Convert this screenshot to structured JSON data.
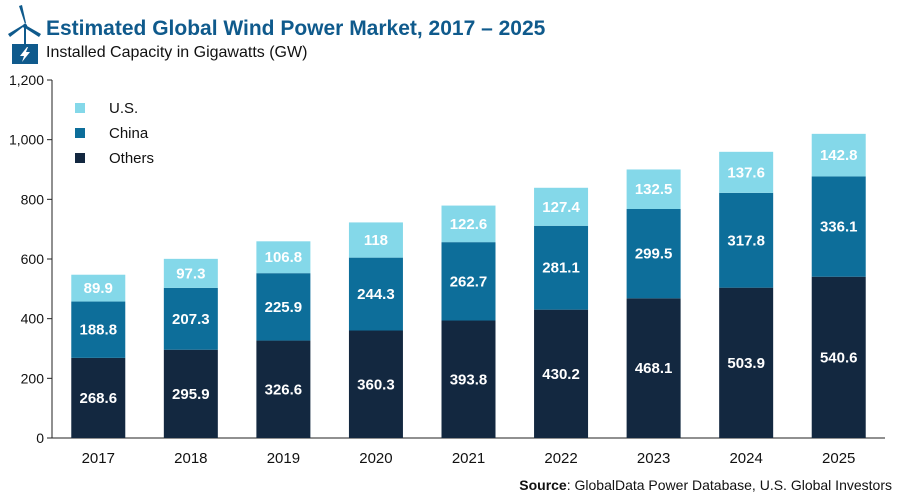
{
  "header": {
    "title": "Estimated Global Wind Power Market, 2017 – 2025",
    "subtitle": "Installed Capacity in Gigawatts (GW)"
  },
  "source": {
    "label": "Source",
    "text": ": GlobalData Power Database, U.S. Global Investors"
  },
  "colors": {
    "us": "#84d8e9",
    "china": "#0d6e9a",
    "others": "#132840",
    "title": "#0f5a8c",
    "label_light": "#ffffff",
    "label_dark": "#ffffff"
  },
  "chart_data": {
    "type": "bar",
    "stacked": true,
    "title": "Estimated Global Wind Power Market, 2017 – 2025",
    "subtitle": "Installed Capacity in Gigawatts (GW)",
    "xlabel": "",
    "ylabel": "",
    "ylim": [
      0,
      1200
    ],
    "yticks": [
      0,
      200,
      400,
      600,
      800,
      1000,
      1200
    ],
    "ytick_labels": [
      "0",
      "200",
      "400",
      "600",
      "800",
      "1,000",
      "1,200"
    ],
    "categories": [
      "2017",
      "2018",
      "2019",
      "2020",
      "2021",
      "2022",
      "2023",
      "2024",
      "2025"
    ],
    "series": [
      {
        "name": "Others",
        "color": "#132840",
        "values": [
          268.6,
          295.9,
          326.6,
          360.3,
          393.8,
          430.2,
          468.1,
          503.9,
          540.6
        ],
        "labels": [
          "268.6",
          "295.9",
          "326.6",
          "360.3",
          "393.8",
          "430.2",
          "468.1",
          "503.9",
          "540.6"
        ]
      },
      {
        "name": "China",
        "color": "#0d6e9a",
        "values": [
          188.8,
          207.3,
          225.9,
          244.3,
          262.7,
          281.1,
          299.5,
          317.8,
          336.1
        ],
        "labels": [
          "188.8",
          "207.3",
          "225.9",
          "244.3",
          "262.7",
          "281.1",
          "299.5",
          "317.8",
          "336.1"
        ]
      },
      {
        "name": "U.S.",
        "color": "#84d8e9",
        "values": [
          89.9,
          97.3,
          106.8,
          118,
          122.6,
          127.4,
          132.5,
          137.6,
          142.8
        ],
        "labels": [
          "89.9",
          "97.3",
          "106.8",
          "118",
          "122.6",
          "127.4",
          "132.5",
          "137.6",
          "142.8"
        ]
      }
    ],
    "legend": {
      "placement": "top-left",
      "order": [
        "U.S.",
        "China",
        "Others"
      ]
    }
  }
}
